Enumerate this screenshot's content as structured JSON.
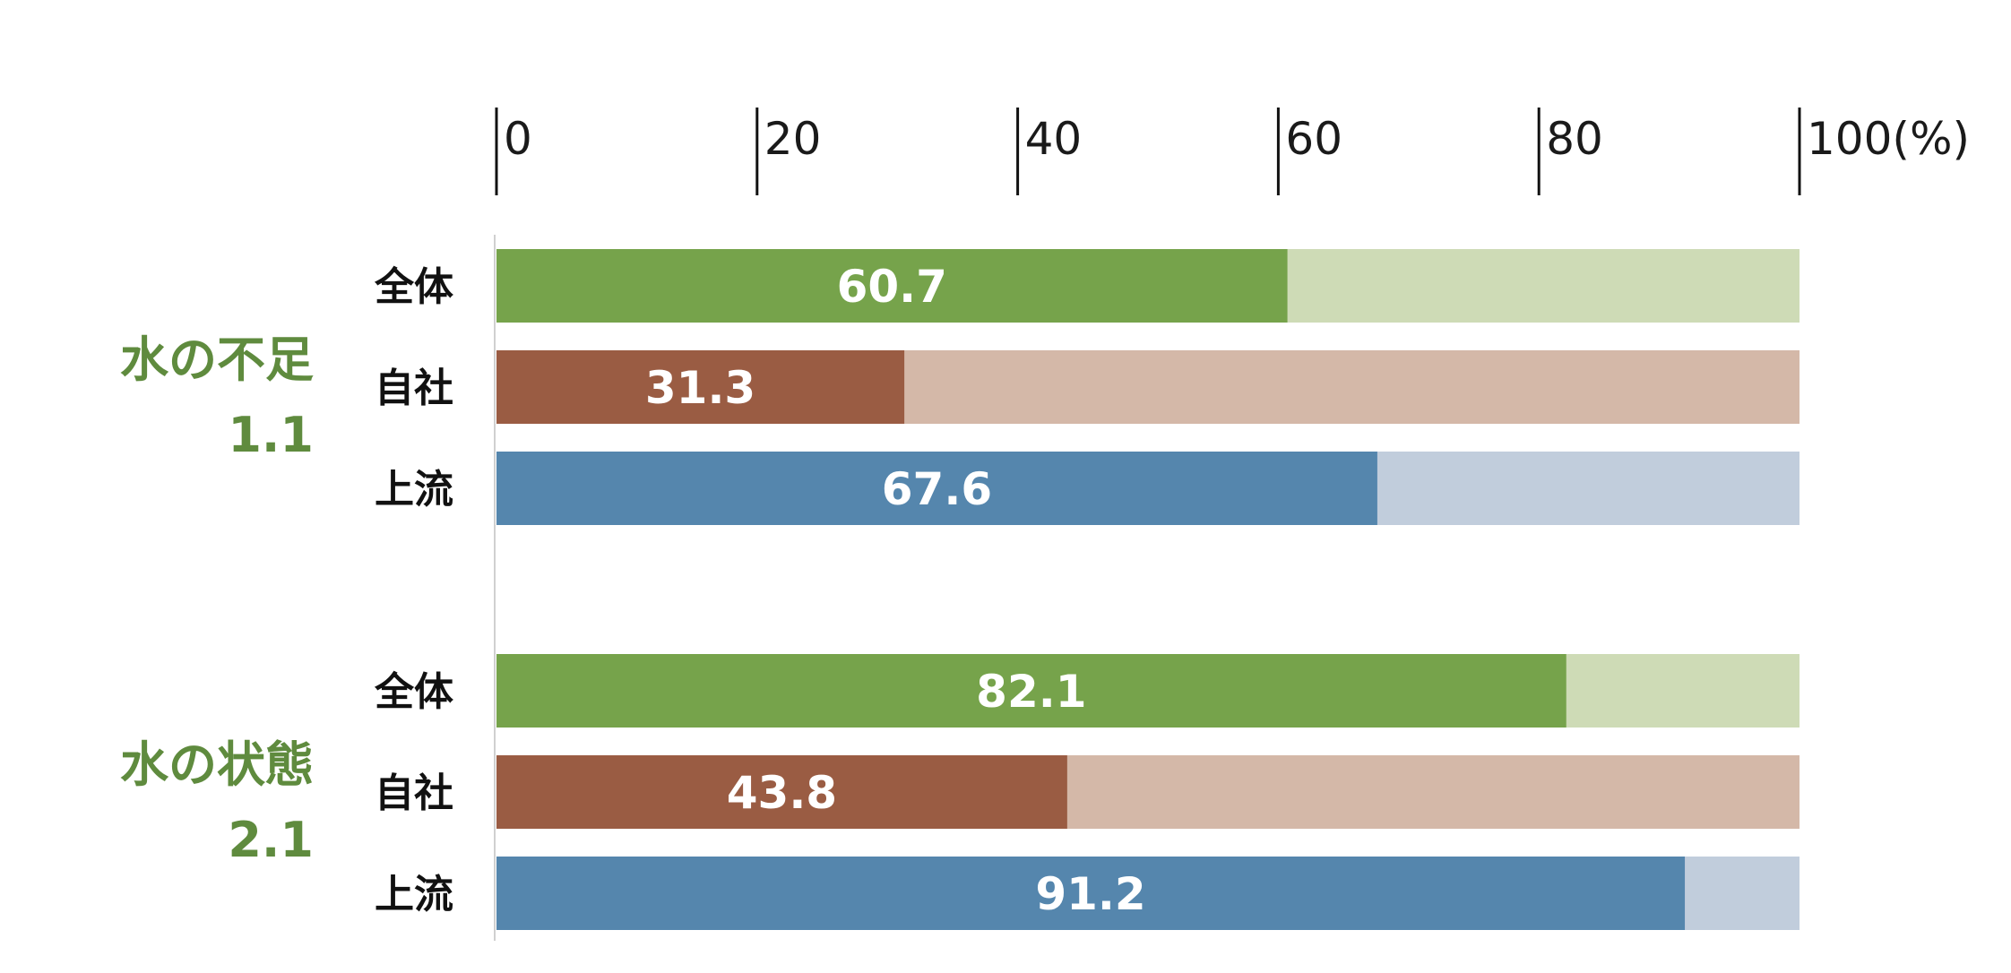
{
  "chart_data": {
    "type": "bar",
    "orientation": "horizontal",
    "stacked_with_remainder": true,
    "xlim": [
      0,
      100
    ],
    "x_ticks": [
      {
        "value": 0,
        "label": "0"
      },
      {
        "value": 20,
        "label": "20"
      },
      {
        "value": 40,
        "label": "40"
      },
      {
        "value": 60,
        "label": "60"
      },
      {
        "value": 80,
        "label": "80"
      },
      {
        "value": 100,
        "label": "100(%)"
      }
    ],
    "colors": {
      "全体": {
        "fill": "#76A34B",
        "rest": "#CEDBB6"
      },
      "自社": {
        "fill": "#9A5C43",
        "rest": "#D4B8A8"
      },
      "上流": {
        "fill": "#5586AD",
        "rest": "#C1CDDC"
      }
    },
    "group_label_color": "#5F8B3E",
    "groups": [
      {
        "name": "水の不足",
        "score": "1.1",
        "bars": [
          {
            "category": "全体",
            "value": 60.7,
            "label": "60.7"
          },
          {
            "category": "自社",
            "value": 31.3,
            "label": "31.3"
          },
          {
            "category": "上流",
            "value": 67.6,
            "label": "67.6"
          }
        ]
      },
      {
        "name": "水の状態",
        "score": "2.1",
        "bars": [
          {
            "category": "全体",
            "value": 82.1,
            "label": "82.1"
          },
          {
            "category": "自社",
            "value": 43.8,
            "label": "43.8"
          },
          {
            "category": "上流",
            "value": 91.2,
            "label": "91.2"
          }
        ]
      }
    ]
  }
}
